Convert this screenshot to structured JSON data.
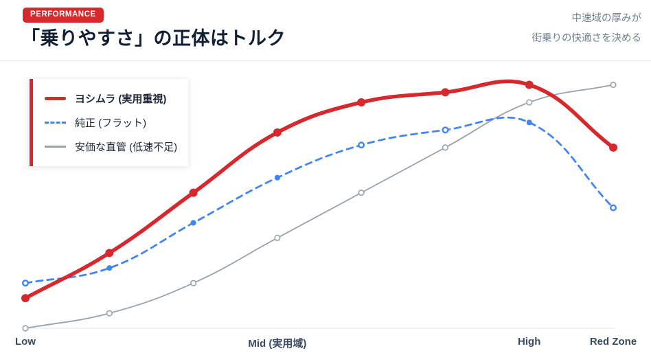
{
  "header": {
    "badge": "PERFORMANCE",
    "title": "「乗りやすさ」の正体はトルク",
    "annotation": [
      "中速域の厚みが",
      "街乗りの快適さを決める"
    ]
  },
  "theme": {
    "red": "#d7282d",
    "blue": "#4285f4",
    "gray": "#9aa1ab",
    "axis_line": "#e7e9ee",
    "axis_label": "#3c4a5f",
    "annotation_text": "#73808f",
    "title_text": "#111e33"
  },
  "chart_data": {
    "type": "line",
    "categories": [
      "Low",
      "",
      "",
      "Mid (実用域)",
      "",
      "",
      "High",
      "Red Zone"
    ],
    "series": [
      {
        "id": "yoshimura",
        "name": "ヨシムラ (実用重視)",
        "color": "#d7282d",
        "line_style": "solid",
        "emphasis": true,
        "marker": "filled",
        "open_points": [],
        "values": [
          12,
          30,
          54,
          78,
          90,
          94,
          97,
          72
        ]
      },
      {
        "id": "stock",
        "name": "純正 (フラット)",
        "color": "#4285f4",
        "line_style": "dashed",
        "emphasis": false,
        "marker": "mixed",
        "open_points": [
          0,
          4,
          5,
          7
        ],
        "values": [
          18,
          24,
          42,
          60,
          73,
          79,
          82,
          48
        ]
      },
      {
        "id": "straight-pipe",
        "name": "安価な直管 (低速不足)",
        "color": "#9aa1ab",
        "line_style": "solid",
        "emphasis": false,
        "marker": "open",
        "open_points": [
          0,
          1,
          2,
          3,
          4,
          5,
          6,
          7
        ],
        "values": [
          0,
          6,
          18,
          36,
          54,
          72,
          90,
          97
        ]
      }
    ],
    "ylim": [
      0,
      100
    ],
    "grid": false,
    "baseline_only": true,
    "legend_position": "top-left",
    "smoothing": 0.4
  }
}
